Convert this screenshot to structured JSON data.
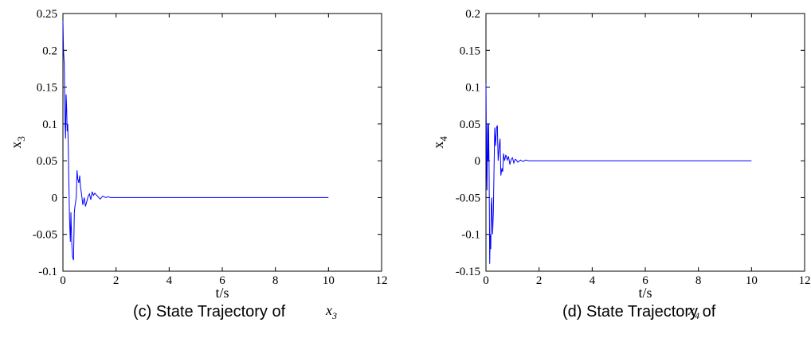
{
  "chart_data": [
    {
      "type": "line",
      "xlabel": "t/s",
      "ylabel": "x",
      "ylabel_sub": "3",
      "xlim": [
        0,
        12
      ],
      "ylim": [
        -0.1,
        0.25
      ],
      "xticks": [
        "0",
        "2",
        "4",
        "6",
        "8",
        "10",
        "12"
      ],
      "yticks": [
        "-0.1",
        "-0.05",
        "0",
        "0.05",
        "0.1",
        "0.15",
        "0.2",
        "0.25"
      ],
      "caption": "(c) State Trajectory of",
      "caption_var": "x",
      "caption_sub": "3",
      "grid": false,
      "line_color": "#0000ff",
      "series": [
        {
          "x": [
            0,
            0.02,
            0.05,
            0.08,
            0.1,
            0.12,
            0.14,
            0.16,
            0.18,
            0.2,
            0.22,
            0.25,
            0.28,
            0.3,
            0.33,
            0.36,
            0.4,
            0.43,
            0.46,
            0.5,
            0.53,
            0.56,
            0.6,
            0.63,
            0.66,
            0.7,
            0.75,
            0.8,
            0.85,
            0.9,
            0.95,
            1.0,
            1.05,
            1.1,
            1.15,
            1.2,
            1.3,
            1.4,
            1.5,
            1.6,
            1.7,
            1.8,
            2.0,
            2.2,
            10
          ],
          "y": [
            0.24,
            0.2,
            0.18,
            0.1,
            0.08,
            0.14,
            0.12,
            0.09,
            0.1,
            0.07,
            0.03,
            -0.03,
            -0.06,
            -0.02,
            -0.06,
            -0.08,
            -0.085,
            -0.02,
            -0.01,
            0.0,
            0.037,
            0.025,
            0.02,
            0.03,
            0.015,
            0.005,
            -0.01,
            0.0,
            -0.012,
            -0.005,
            0.002,
            0.005,
            -0.003,
            0.008,
            0.003,
            0.006,
            0.002,
            -0.002,
            0.002,
            0.0,
            0.001,
            0.0,
            0.0,
            0.0,
            0.0
          ]
        }
      ]
    },
    {
      "type": "line",
      "xlabel": "t/s",
      "ylabel": "x",
      "ylabel_sub": "4",
      "xlim": [
        0,
        12
      ],
      "ylim": [
        -0.15,
        0.2
      ],
      "xticks": [
        "0",
        "2",
        "4",
        "6",
        "8",
        "10",
        "12"
      ],
      "yticks": [
        "-0.15",
        "-0.1",
        "-0.05",
        "0",
        "0.05",
        "0.1",
        "0.15",
        "0.2"
      ],
      "caption": "(d) State Trajectory of",
      "caption_var": "x",
      "caption_sub": "4",
      "grid": false,
      "line_color": "#0000ff",
      "series": [
        {
          "x": [
            0,
            0.02,
            0.04,
            0.06,
            0.08,
            0.1,
            0.12,
            0.14,
            0.16,
            0.18,
            0.2,
            0.22,
            0.25,
            0.28,
            0.3,
            0.33,
            0.36,
            0.4,
            0.43,
            0.46,
            0.5,
            0.53,
            0.56,
            0.6,
            0.63,
            0.66,
            0.7,
            0.75,
            0.8,
            0.85,
            0.9,
            0.95,
            1.0,
            1.05,
            1.1,
            1.15,
            1.2,
            1.3,
            1.4,
            1.5,
            1.6,
            1.7,
            1.8,
            2.0,
            2.2,
            10
          ],
          "y": [
            0.105,
            0.0,
            -0.04,
            0.05,
            0.0,
            0.05,
            -0.02,
            -0.14,
            -0.1,
            -0.12,
            -0.06,
            -0.05,
            -0.1,
            -0.07,
            -0.02,
            0.045,
            0.02,
            0.045,
            0.048,
            0.0,
            0.02,
            0.03,
            -0.02,
            -0.01,
            -0.015,
            0.01,
            0.0,
            0.008,
            0.001,
            0.006,
            -0.005,
            0.002,
            0.004,
            -0.003,
            0.002,
            0.001,
            -0.002,
            0.001,
            -0.001,
            0.001,
            0.0,
            0.0,
            0.0,
            0.0,
            0.0,
            0.0
          ]
        }
      ]
    }
  ]
}
